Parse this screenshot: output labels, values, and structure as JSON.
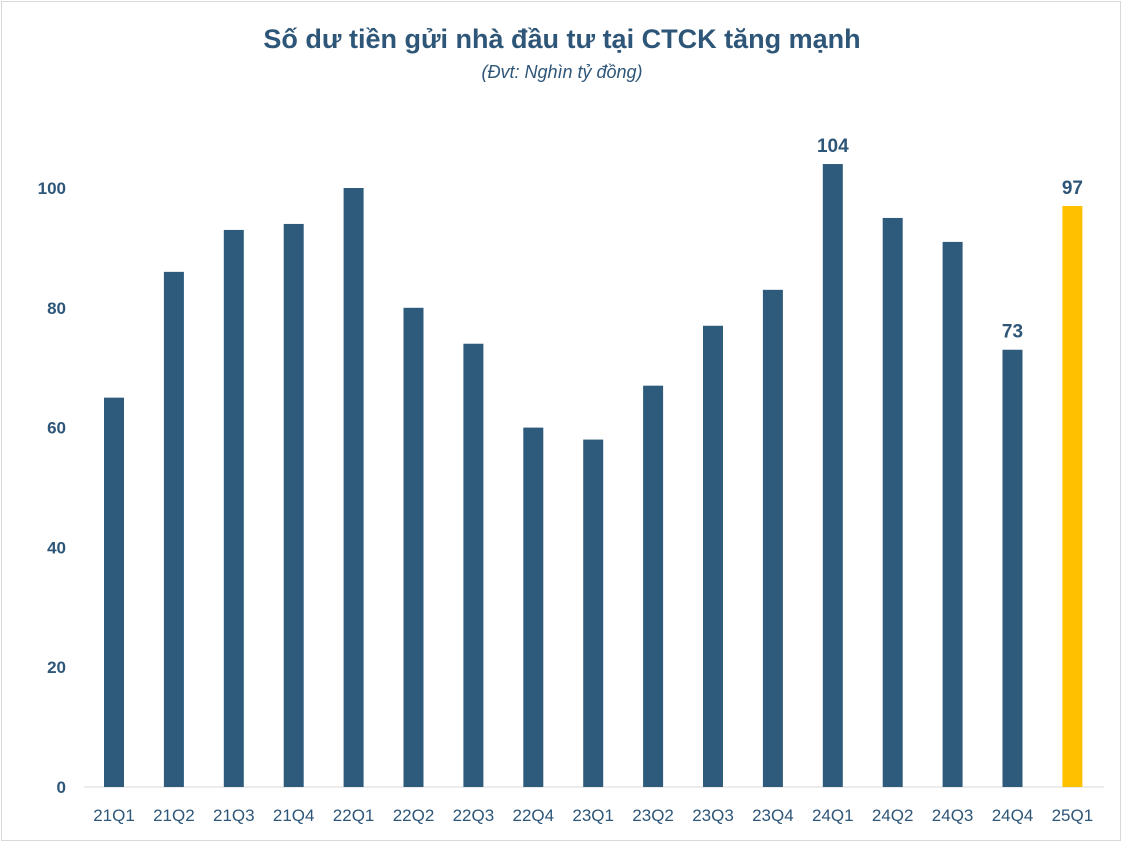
{
  "chart_data": {
    "type": "bar",
    "title": "Số dư tiền gửi nhà đầu tư tại CTCK tăng mạnh",
    "subtitle": "(Đvt: Nghìn tỷ đồng)",
    "xlabel": "",
    "ylabel": "",
    "ylim": [
      0,
      110
    ],
    "yticks": [
      0,
      20,
      40,
      60,
      80,
      100
    ],
    "grid": false,
    "categories": [
      "21Q1",
      "21Q2",
      "21Q3",
      "21Q4",
      "22Q1",
      "22Q2",
      "22Q3",
      "22Q4",
      "23Q1",
      "23Q2",
      "23Q3",
      "23Q4",
      "24Q1",
      "24Q2",
      "24Q3",
      "24Q4",
      "25Q1"
    ],
    "values": [
      65,
      86,
      93,
      94,
      100,
      80,
      74,
      60,
      58,
      67,
      77,
      83,
      104,
      95,
      91,
      73,
      97
    ],
    "data_labels": {
      "24Q1": "104",
      "24Q4": "73",
      "25Q1": "97"
    },
    "colors": {
      "default": "#2e5b7c",
      "highlight": "#ffc000",
      "highlight_category": "25Q1"
    }
  }
}
